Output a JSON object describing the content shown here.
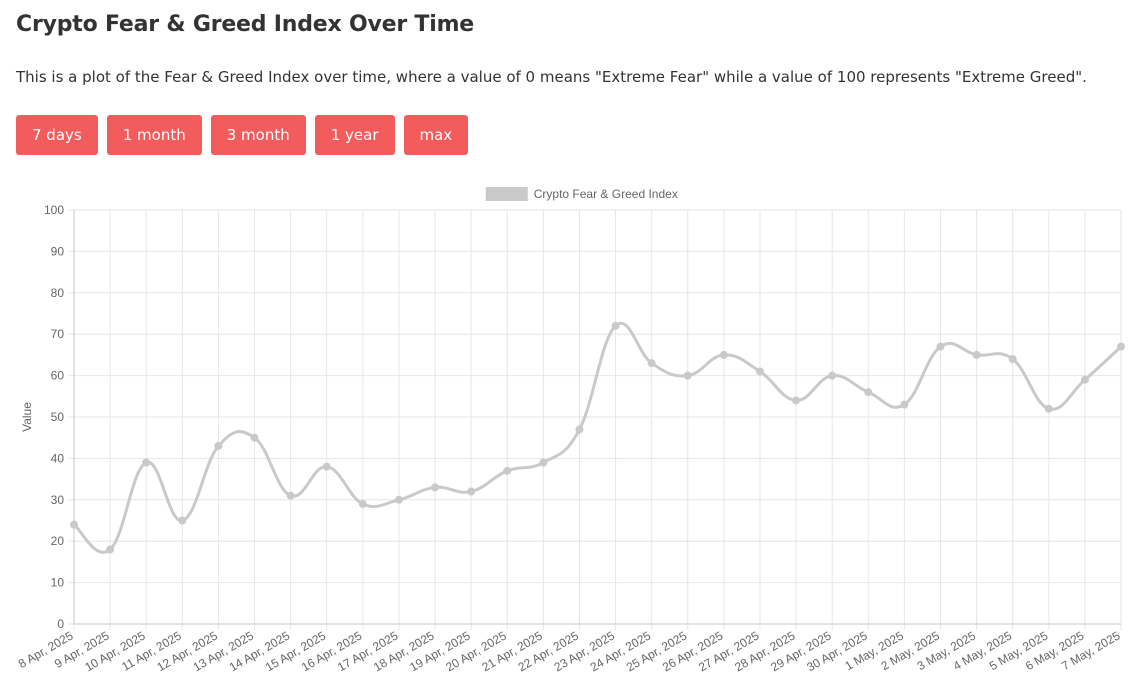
{
  "page": {
    "title": "Crypto Fear & Greed Index Over Time",
    "description": "This is a plot of the Fear & Greed Index over time, where a value of 0 means \"Extreme Fear\" while a value of 100 represents \"Extreme Greed\"."
  },
  "range_buttons": [
    {
      "label": "7 days"
    },
    {
      "label": "1 month"
    },
    {
      "label": "3 month"
    },
    {
      "label": "1 year"
    },
    {
      "label": "max"
    }
  ],
  "colors": {
    "button": "#f25c5c",
    "series_line": "#c9c9c9",
    "grid": "#e6e6e6",
    "axis_text": "#666666"
  },
  "chart_data": {
    "type": "line",
    "title": "",
    "xlabel": "",
    "ylabel": "Value",
    "ylim": [
      0,
      100
    ],
    "yticks": [
      0,
      10,
      20,
      30,
      40,
      50,
      60,
      70,
      80,
      90,
      100
    ],
    "grid": true,
    "legend_position": "top-center",
    "categories": [
      "8 Apr, 2025",
      "9 Apr, 2025",
      "10 Apr, 2025",
      "11 Apr, 2025",
      "12 Apr, 2025",
      "13 Apr, 2025",
      "14 Apr, 2025",
      "15 Apr, 2025",
      "16 Apr, 2025",
      "17 Apr, 2025",
      "18 Apr, 2025",
      "19 Apr, 2025",
      "20 Apr, 2025",
      "21 Apr, 2025",
      "22 Apr, 2025",
      "23 Apr, 2025",
      "24 Apr, 2025",
      "25 Apr, 2025",
      "26 Apr, 2025",
      "27 Apr, 2025",
      "28 Apr, 2025",
      "29 Apr, 2025",
      "30 Apr, 2025",
      "1 May, 2025",
      "2 May, 2025",
      "3 May, 2025",
      "4 May, 2025",
      "5 May, 2025",
      "6 May, 2025",
      "7 May, 2025"
    ],
    "series": [
      {
        "name": "Crypto Fear & Greed Index",
        "color": "#c9c9c9",
        "values": [
          24,
          18,
          39,
          25,
          43,
          45,
          31,
          38,
          29,
          30,
          33,
          32,
          37,
          39,
          47,
          72,
          63,
          60,
          65,
          61,
          54,
          60,
          56,
          53,
          67,
          65,
          64,
          52,
          59,
          67
        ]
      }
    ]
  }
}
